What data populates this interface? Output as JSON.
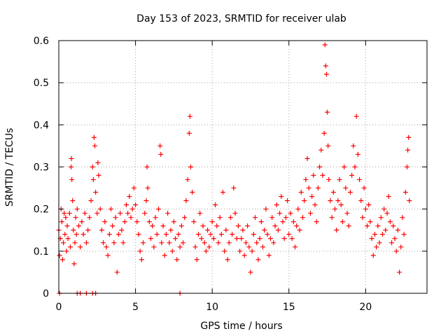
{
  "chart_data": {
    "type": "scatter",
    "title": "Day 153 of 2023, SRMTID for receiver ulab",
    "xlabel": "GPS time / hours",
    "ylabel": "SRMTID / TECUs",
    "xlim": [
      0,
      24
    ],
    "ylim": [
      0,
      0.6
    ],
    "xticks": [
      0,
      5,
      10,
      15,
      20
    ],
    "xtick_labels": [
      "0",
      "5",
      "10",
      "15",
      "20"
    ],
    "yticks": [
      0,
      0.1,
      0.2,
      0.3,
      0.4,
      0.5,
      0.6
    ],
    "ytick_labels": [
      "0",
      "0.1",
      "0.2",
      "0.3",
      "0.4",
      "0.5",
      "0.6"
    ],
    "grid": true,
    "marker": "plus",
    "color": "#ff0000",
    "series": [
      {
        "name": "SRMTID",
        "points": [
          [
            0.0,
            0.15
          ],
          [
            0.05,
            0.09
          ],
          [
            0.1,
            0.13
          ],
          [
            0.15,
            0.2
          ],
          [
            0.2,
            0.17
          ],
          [
            0.25,
            0.08
          ],
          [
            0.3,
            0.12
          ],
          [
            0.35,
            0.19
          ],
          [
            0.4,
            0.14
          ],
          [
            0.45,
            0.18
          ],
          [
            0.5,
            0.1
          ],
          [
            0.55,
            0.16
          ],
          [
            0.6,
            0.13
          ],
          [
            0.7,
            0.19
          ],
          [
            0.75,
            0.11
          ],
          [
            0.8,
            0.3
          ],
          [
            0.82,
            0.32
          ],
          [
            0.85,
            0.27
          ],
          [
            0.9,
            0.22
          ],
          [
            0.95,
            0.15
          ],
          [
            1.0,
            0.07
          ],
          [
            1.05,
            0.12
          ],
          [
            1.1,
            0.18
          ],
          [
            1.15,
            0.14
          ],
          [
            1.2,
            0.2
          ],
          [
            1.3,
            0.16
          ],
          [
            1.4,
            0.11
          ],
          [
            1.5,
            0.17
          ],
          [
            1.6,
            0.14
          ],
          [
            1.7,
            0.19
          ],
          [
            1.8,
            0.12
          ],
          [
            1.9,
            0.15
          ],
          [
            2.0,
            0.18
          ],
          [
            2.1,
            0.22
          ],
          [
            2.2,
            0.3
          ],
          [
            2.25,
            0.27
          ],
          [
            2.3,
            0.37
          ],
          [
            2.35,
            0.35
          ],
          [
            2.4,
            0.24
          ],
          [
            2.5,
            0.19
          ],
          [
            2.55,
            0.31
          ],
          [
            2.6,
            0.28
          ],
          [
            2.7,
            0.2
          ],
          [
            2.8,
            0.15
          ],
          [
            2.9,
            0.12
          ],
          [
            3.0,
            0.17
          ],
          [
            3.1,
            0.11
          ],
          [
            3.2,
            0.09
          ],
          [
            3.3,
            0.14
          ],
          [
            3.4,
            0.2
          ],
          [
            3.5,
            0.16
          ],
          [
            3.6,
            0.12
          ],
          [
            3.7,
            0.18
          ],
          [
            3.8,
            0.05
          ],
          [
            3.9,
            0.14
          ],
          [
            4.0,
            0.19
          ],
          [
            4.1,
            0.15
          ],
          [
            4.2,
            0.12
          ],
          [
            4.3,
            0.17
          ],
          [
            4.4,
            0.21
          ],
          [
            4.5,
            0.19
          ],
          [
            4.6,
            0.23
          ],
          [
            4.7,
            0.18
          ],
          [
            4.8,
            0.2
          ],
          [
            4.9,
            0.25
          ],
          [
            5.0,
            0.21
          ],
          [
            5.1,
            0.17
          ],
          [
            5.2,
            0.14
          ],
          [
            5.3,
            0.1
          ],
          [
            5.4,
            0.08
          ],
          [
            5.5,
            0.12
          ],
          [
            5.6,
            0.19
          ],
          [
            5.7,
            0.22
          ],
          [
            5.75,
            0.3
          ],
          [
            5.8,
            0.25
          ],
          [
            5.9,
            0.17
          ],
          [
            6.0,
            0.13
          ],
          [
            6.1,
            0.16
          ],
          [
            6.2,
            0.11
          ],
          [
            6.3,
            0.18
          ],
          [
            6.4,
            0.14
          ],
          [
            6.5,
            0.2
          ],
          [
            6.6,
            0.35
          ],
          [
            6.65,
            0.33
          ],
          [
            6.7,
            0.12
          ],
          [
            6.8,
            0.16
          ],
          [
            6.9,
            0.09
          ],
          [
            7.0,
            0.14
          ],
          [
            7.1,
            0.19
          ],
          [
            7.2,
            0.12
          ],
          [
            7.3,
            0.15
          ],
          [
            7.4,
            0.1
          ],
          [
            7.5,
            0.17
          ],
          [
            7.6,
            0.13
          ],
          [
            7.7,
            0.08
          ],
          [
            7.8,
            0.14
          ],
          [
            7.9,
            0.11
          ],
          [
            8.0,
            0.16
          ],
          [
            8.1,
            0.12
          ],
          [
            8.2,
            0.18
          ],
          [
            8.3,
            0.22
          ],
          [
            8.4,
            0.27
          ],
          [
            8.5,
            0.38
          ],
          [
            8.55,
            0.42
          ],
          [
            8.6,
            0.3
          ],
          [
            8.7,
            0.24
          ],
          [
            8.8,
            0.17
          ],
          [
            8.9,
            0.11
          ],
          [
            9.0,
            0.08
          ],
          [
            9.1,
            0.14
          ],
          [
            9.2,
            0.19
          ],
          [
            9.3,
            0.13
          ],
          [
            9.4,
            0.16
          ],
          [
            9.5,
            0.12
          ],
          [
            9.6,
            0.1
          ],
          [
            9.7,
            0.15
          ],
          [
            9.8,
            0.11
          ],
          [
            9.9,
            0.14
          ],
          [
            10.0,
            0.17
          ],
          [
            10.1,
            0.13
          ],
          [
            10.2,
            0.21
          ],
          [
            10.3,
            0.16
          ],
          [
            10.4,
            0.12
          ],
          [
            10.5,
            0.18
          ],
          [
            10.6,
            0.14
          ],
          [
            10.7,
            0.24
          ],
          [
            10.8,
            0.1
          ],
          [
            10.9,
            0.15
          ],
          [
            11.0,
            0.08
          ],
          [
            11.1,
            0.12
          ],
          [
            11.2,
            0.18
          ],
          [
            11.3,
            0.14
          ],
          [
            11.4,
            0.25
          ],
          [
            11.5,
            0.19
          ],
          [
            11.6,
            0.13
          ],
          [
            11.7,
            0.16
          ],
          [
            11.8,
            0.1
          ],
          [
            11.9,
            0.13
          ],
          [
            12.0,
            0.15
          ],
          [
            12.1,
            0.09
          ],
          [
            12.2,
            0.12
          ],
          [
            12.3,
            0.16
          ],
          [
            12.4,
            0.11
          ],
          [
            12.5,
            0.05
          ],
          [
            12.6,
            0.1
          ],
          [
            12.7,
            0.14
          ],
          [
            12.8,
            0.18
          ],
          [
            12.9,
            0.12
          ],
          [
            13.0,
            0.08
          ],
          [
            13.1,
            0.13
          ],
          [
            13.2,
            0.17
          ],
          [
            13.3,
            0.11
          ],
          [
            13.4,
            0.15
          ],
          [
            13.5,
            0.2
          ],
          [
            13.6,
            0.14
          ],
          [
            13.7,
            0.09
          ],
          [
            13.8,
            0.13
          ],
          [
            13.9,
            0.18
          ],
          [
            14.0,
            0.12
          ],
          [
            14.1,
            0.16
          ],
          [
            14.2,
            0.21
          ],
          [
            14.3,
            0.15
          ],
          [
            14.4,
            0.19
          ],
          [
            14.5,
            0.23
          ],
          [
            14.6,
            0.17
          ],
          [
            14.7,
            0.13
          ],
          [
            14.8,
            0.18
          ],
          [
            14.9,
            0.22
          ],
          [
            15.0,
            0.14
          ],
          [
            15.1,
            0.19
          ],
          [
            15.2,
            0.13
          ],
          [
            15.3,
            0.17
          ],
          [
            15.4,
            0.11
          ],
          [
            15.5,
            0.16
          ],
          [
            15.6,
            0.2
          ],
          [
            15.7,
            0.15
          ],
          [
            15.8,
            0.24
          ],
          [
            15.9,
            0.18
          ],
          [
            16.0,
            0.22
          ],
          [
            16.1,
            0.27
          ],
          [
            16.2,
            0.32
          ],
          [
            16.3,
            0.25
          ],
          [
            16.4,
            0.19
          ],
          [
            16.5,
            0.23
          ],
          [
            16.6,
            0.28
          ],
          [
            16.7,
            0.21
          ],
          [
            16.8,
            0.17
          ],
          [
            16.9,
            0.25
          ],
          [
            17.0,
            0.3
          ],
          [
            17.1,
            0.34
          ],
          [
            17.2,
            0.28
          ],
          [
            17.3,
            0.38
          ],
          [
            17.35,
            0.59
          ],
          [
            17.4,
            0.54
          ],
          [
            17.45,
            0.52
          ],
          [
            17.5,
            0.43
          ],
          [
            17.55,
            0.35
          ],
          [
            17.6,
            0.27
          ],
          [
            17.7,
            0.22
          ],
          [
            17.8,
            0.18
          ],
          [
            17.9,
            0.24
          ],
          [
            18.0,
            0.2
          ],
          [
            18.1,
            0.15
          ],
          [
            18.2,
            0.22
          ],
          [
            18.3,
            0.27
          ],
          [
            18.4,
            0.21
          ],
          [
            18.5,
            0.17
          ],
          [
            18.6,
            0.3
          ],
          [
            18.7,
            0.25
          ],
          [
            18.8,
            0.19
          ],
          [
            18.9,
            0.16
          ],
          [
            19.0,
            0.24
          ],
          [
            19.1,
            0.28
          ],
          [
            19.2,
            0.35
          ],
          [
            19.3,
            0.3
          ],
          [
            19.4,
            0.42
          ],
          [
            19.5,
            0.33
          ],
          [
            19.6,
            0.27
          ],
          [
            19.7,
            0.22
          ],
          [
            19.8,
            0.18
          ],
          [
            19.9,
            0.25
          ],
          [
            20.0,
            0.2
          ],
          [
            20.1,
            0.16
          ],
          [
            20.2,
            0.21
          ],
          [
            20.3,
            0.17
          ],
          [
            20.4,
            0.13
          ],
          [
            20.5,
            0.09
          ],
          [
            20.6,
            0.14
          ],
          [
            20.7,
            0.11
          ],
          [
            20.8,
            0.16
          ],
          [
            20.9,
            0.12
          ],
          [
            21.0,
            0.18
          ],
          [
            21.1,
            0.14
          ],
          [
            21.2,
            0.2
          ],
          [
            21.3,
            0.15
          ],
          [
            21.4,
            0.19
          ],
          [
            21.5,
            0.23
          ],
          [
            21.6,
            0.17
          ],
          [
            21.7,
            0.12
          ],
          [
            21.8,
            0.16
          ],
          [
            21.9,
            0.13
          ],
          [
            22.0,
            0.1
          ],
          [
            22.1,
            0.15
          ],
          [
            22.2,
            0.05
          ],
          [
            22.3,
            0.11
          ],
          [
            22.4,
            0.18
          ],
          [
            22.5,
            0.14
          ],
          [
            22.6,
            0.24
          ],
          [
            22.7,
            0.3
          ],
          [
            22.75,
            0.34
          ],
          [
            22.8,
            0.37
          ],
          [
            22.85,
            0.22
          ],
          [
            0.05,
            0.0
          ],
          [
            1.2,
            0.0
          ],
          [
            1.4,
            0.0
          ],
          [
            1.8,
            0.0
          ],
          [
            2.2,
            0.0
          ],
          [
            2.4,
            0.0
          ],
          [
            7.9,
            0.0
          ]
        ]
      }
    ]
  }
}
